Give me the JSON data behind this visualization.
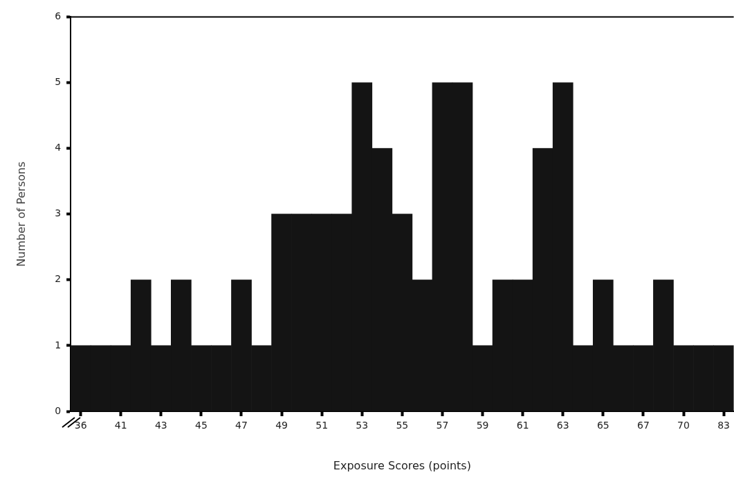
{
  "chart_data": {
    "type": "bar",
    "xlabel": "Exposure Scores (points)",
    "ylabel": "Number of Persons",
    "categories": [
      "36",
      null,
      "41",
      null,
      "43",
      null,
      "45",
      null,
      "47",
      null,
      "49",
      null,
      "51",
      null,
      "53",
      null,
      "55",
      null,
      "57",
      null,
      "59",
      null,
      "61",
      null,
      "63",
      null,
      "65",
      null,
      "67",
      null,
      "70",
      null,
      "83"
    ],
    "values": [
      1,
      1,
      1,
      2,
      1,
      2,
      1,
      1,
      2,
      1,
      3,
      3,
      3,
      3,
      5,
      4,
      3,
      2,
      5,
      5,
      1,
      2,
      2,
      4,
      5,
      1,
      2,
      1,
      1,
      2,
      1,
      1,
      1
    ],
    "color": "#141414",
    "ylim": [
      0,
      6
    ],
    "yticks": [
      0,
      1,
      2,
      3,
      4,
      5,
      6
    ]
  }
}
